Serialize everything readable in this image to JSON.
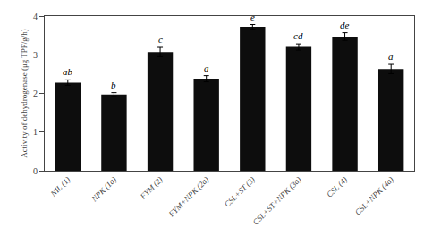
{
  "chart_data": {
    "type": "bar",
    "categories": [
      "NIL (1)",
      "NPK (1a)",
      "FYM (2)",
      "FYM+NPK (2a)",
      "CSL+ST (3)",
      "CSL+ST+NPK (3a)",
      "CSL (4)",
      "CSL+NPK (4a)"
    ],
    "values": [
      2.28,
      1.97,
      3.07,
      2.38,
      3.72,
      3.2,
      3.47,
      2.63
    ],
    "errors": [
      0.07,
      0.05,
      0.12,
      0.08,
      0.06,
      0.08,
      0.1,
      0.12
    ],
    "annotations": [
      {
        "x": "NIL (1)",
        "text": "ab"
      },
      {
        "x": "NPK (1a)",
        "text": "b"
      },
      {
        "x": "FYM (2)",
        "text": "c"
      },
      {
        "x": "FYM+NPK (2a)",
        "text": "a"
      },
      {
        "x": "CSL+ST (3)",
        "text": "e"
      },
      {
        "x": "CSL+ST+NPK (3a)",
        "text": "cd"
      },
      {
        "x": "CSL (4)",
        "text": "de"
      },
      {
        "x": "CSL+NPK (4a)",
        "text": "a"
      }
    ],
    "color": "#0d0d0d",
    "ylabel": "Activity of dehydrogenase (μg TPF/g/h)",
    "ylim": [
      0,
      4
    ],
    "yticks": [
      0,
      1,
      2,
      3,
      4
    ],
    "grid": false
  }
}
